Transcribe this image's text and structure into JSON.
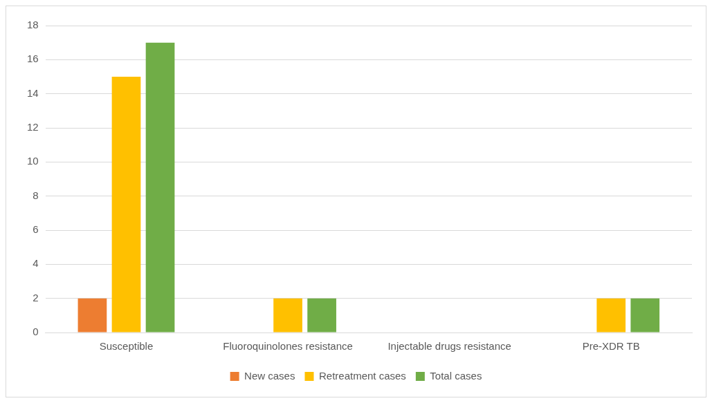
{
  "chart_data": {
    "type": "bar",
    "categories": [
      "Susceptible",
      "Fluoroquinolones resistance",
      "Injectable drugs resistance",
      "Pre-XDR TB"
    ],
    "series": [
      {
        "name": "New cases",
        "color": "#ed7d31",
        "values": [
          2,
          0,
          0,
          0
        ]
      },
      {
        "name": "Retreatment cases",
        "color": "#ffc000",
        "values": [
          15,
          2,
          0,
          2
        ]
      },
      {
        "name": "Total cases",
        "color": "#70ad47",
        "values": [
          17,
          2,
          0,
          2
        ]
      }
    ],
    "ylim": [
      0,
      18
    ],
    "yticks": [
      0,
      2,
      4,
      6,
      8,
      10,
      12,
      14,
      16,
      18
    ],
    "grid": "y",
    "legend": "bottom"
  }
}
